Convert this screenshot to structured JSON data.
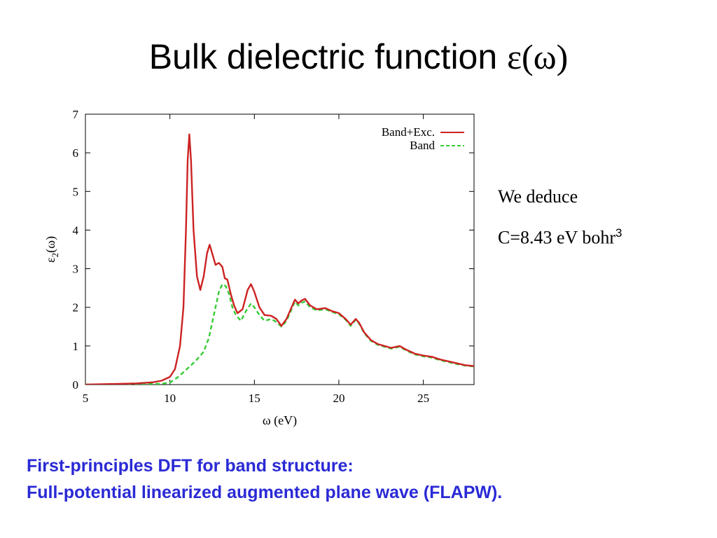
{
  "title": {
    "text": "Bulk dielectric function ",
    "symbol": "ε(ω)"
  },
  "side_note": {
    "line1": "We deduce",
    "line2": "C=8.43 eV bohr",
    "line2_sup": "3"
  },
  "footnote": {
    "line1": "First-principles DFT for band structure:",
    "line2": "Full-potential linearized augmented plane wave (FLAPW)."
  },
  "colors": {
    "band_exc": "#cc2222",
    "band": "#33cc33",
    "footnote": "#2a2ad6"
  },
  "chart_data": {
    "type": "line",
    "title": "",
    "xlabel": "ω (eV)",
    "ylabel": "ε2(ω)",
    "xlim": [
      5,
      28
    ],
    "ylim": [
      0,
      7
    ],
    "x_ticks": [
      5,
      10,
      15,
      20,
      25
    ],
    "y_ticks": [
      0,
      1,
      2,
      3,
      4,
      5,
      6,
      7
    ],
    "grid": false,
    "legend_position": "top-right",
    "series": [
      {
        "name": "Band+Exc.",
        "style": "solid",
        "color": "#cc2222",
        "points": [
          [
            5,
            0.0
          ],
          [
            7,
            0.02
          ],
          [
            8,
            0.03
          ],
          [
            9,
            0.06
          ],
          [
            9.5,
            0.1
          ],
          [
            10,
            0.2
          ],
          [
            10.3,
            0.4
          ],
          [
            10.6,
            1.0
          ],
          [
            10.8,
            2.0
          ],
          [
            10.95,
            4.0
          ],
          [
            11.05,
            5.8
          ],
          [
            11.15,
            6.48
          ],
          [
            11.25,
            5.8
          ],
          [
            11.4,
            4.0
          ],
          [
            11.6,
            2.8
          ],
          [
            11.8,
            2.45
          ],
          [
            12.0,
            2.8
          ],
          [
            12.2,
            3.4
          ],
          [
            12.35,
            3.62
          ],
          [
            12.5,
            3.4
          ],
          [
            12.7,
            3.1
          ],
          [
            12.9,
            3.15
          ],
          [
            13.1,
            3.05
          ],
          [
            13.25,
            2.75
          ],
          [
            13.4,
            2.72
          ],
          [
            13.6,
            2.35
          ],
          [
            13.8,
            2.05
          ],
          [
            14.0,
            1.85
          ],
          [
            14.3,
            1.95
          ],
          [
            14.6,
            2.45
          ],
          [
            14.8,
            2.6
          ],
          [
            15.0,
            2.4
          ],
          [
            15.3,
            2.0
          ],
          [
            15.6,
            1.8
          ],
          [
            16.0,
            1.78
          ],
          [
            16.3,
            1.7
          ],
          [
            16.6,
            1.52
          ],
          [
            16.9,
            1.7
          ],
          [
            17.2,
            2.0
          ],
          [
            17.4,
            2.2
          ],
          [
            17.6,
            2.1
          ],
          [
            17.8,
            2.18
          ],
          [
            18.0,
            2.22
          ],
          [
            18.3,
            2.05
          ],
          [
            18.7,
            1.95
          ],
          [
            19.2,
            1.98
          ],
          [
            19.6,
            1.9
          ],
          [
            20.0,
            1.85
          ],
          [
            20.4,
            1.7
          ],
          [
            20.7,
            1.55
          ],
          [
            21.0,
            1.7
          ],
          [
            21.2,
            1.6
          ],
          [
            21.5,
            1.35
          ],
          [
            21.9,
            1.15
          ],
          [
            22.3,
            1.05
          ],
          [
            22.7,
            1.0
          ],
          [
            23.1,
            0.95
          ],
          [
            23.6,
            1.0
          ],
          [
            24.0,
            0.9
          ],
          [
            24.5,
            0.8
          ],
          [
            25.0,
            0.75
          ],
          [
            25.5,
            0.72
          ],
          [
            26.0,
            0.65
          ],
          [
            26.5,
            0.6
          ],
          [
            27.0,
            0.55
          ],
          [
            27.5,
            0.5
          ],
          [
            28.0,
            0.48
          ]
        ]
      },
      {
        "name": "Band",
        "style": "dashed",
        "color": "#33cc33",
        "points": [
          [
            5,
            0.0
          ],
          [
            8,
            0.01
          ],
          [
            9.5,
            0.02
          ],
          [
            10,
            0.05
          ],
          [
            10.5,
            0.2
          ],
          [
            11.0,
            0.4
          ],
          [
            11.5,
            0.6
          ],
          [
            12.0,
            0.85
          ],
          [
            12.3,
            1.2
          ],
          [
            12.6,
            1.8
          ],
          [
            12.9,
            2.4
          ],
          [
            13.1,
            2.6
          ],
          [
            13.3,
            2.55
          ],
          [
            13.5,
            2.35
          ],
          [
            13.7,
            2.0
          ],
          [
            13.9,
            1.8
          ],
          [
            14.2,
            1.65
          ],
          [
            14.5,
            1.9
          ],
          [
            14.8,
            2.1
          ],
          [
            15.0,
            2.0
          ],
          [
            15.3,
            1.8
          ],
          [
            15.6,
            1.65
          ],
          [
            16.0,
            1.7
          ],
          [
            16.3,
            1.62
          ],
          [
            16.6,
            1.5
          ],
          [
            16.9,
            1.65
          ],
          [
            17.2,
            1.95
          ],
          [
            17.4,
            2.15
          ],
          [
            17.6,
            2.05
          ],
          [
            17.8,
            2.12
          ],
          [
            18.0,
            2.15
          ],
          [
            18.3,
            2.0
          ],
          [
            18.7,
            1.92
          ],
          [
            19.2,
            1.95
          ],
          [
            19.6,
            1.88
          ],
          [
            20.0,
            1.82
          ],
          [
            20.4,
            1.68
          ],
          [
            20.7,
            1.52
          ],
          [
            21.0,
            1.68
          ],
          [
            21.2,
            1.58
          ],
          [
            21.5,
            1.33
          ],
          [
            21.9,
            1.13
          ],
          [
            22.3,
            1.03
          ],
          [
            22.7,
            0.98
          ],
          [
            23.1,
            0.93
          ],
          [
            23.6,
            0.98
          ],
          [
            24.0,
            0.88
          ],
          [
            24.5,
            0.78
          ],
          [
            25.0,
            0.73
          ],
          [
            25.5,
            0.7
          ],
          [
            26.0,
            0.63
          ],
          [
            26.5,
            0.58
          ],
          [
            27.0,
            0.53
          ],
          [
            27.5,
            0.49
          ],
          [
            28.0,
            0.47
          ]
        ]
      }
    ]
  }
}
